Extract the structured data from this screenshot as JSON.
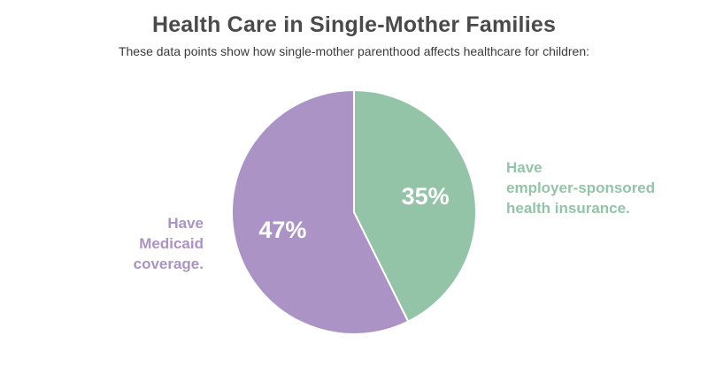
{
  "chart_data": {
    "type": "pie",
    "title": "Health Care in Single-Mother Families",
    "subtitle": "These data points show how single-mother parenthood affects healthcare for children:",
    "slices": [
      {
        "value": 35,
        "display": "35%",
        "label_lines": [
          "Have",
          "employer-sponsored",
          "health insurance."
        ],
        "color": "#93c4a8"
      },
      {
        "value": 47,
        "display": "47%",
        "label_lines": [
          "Have",
          "Medicaid",
          "coverage."
        ],
        "color": "#ab93c6"
      }
    ]
  }
}
